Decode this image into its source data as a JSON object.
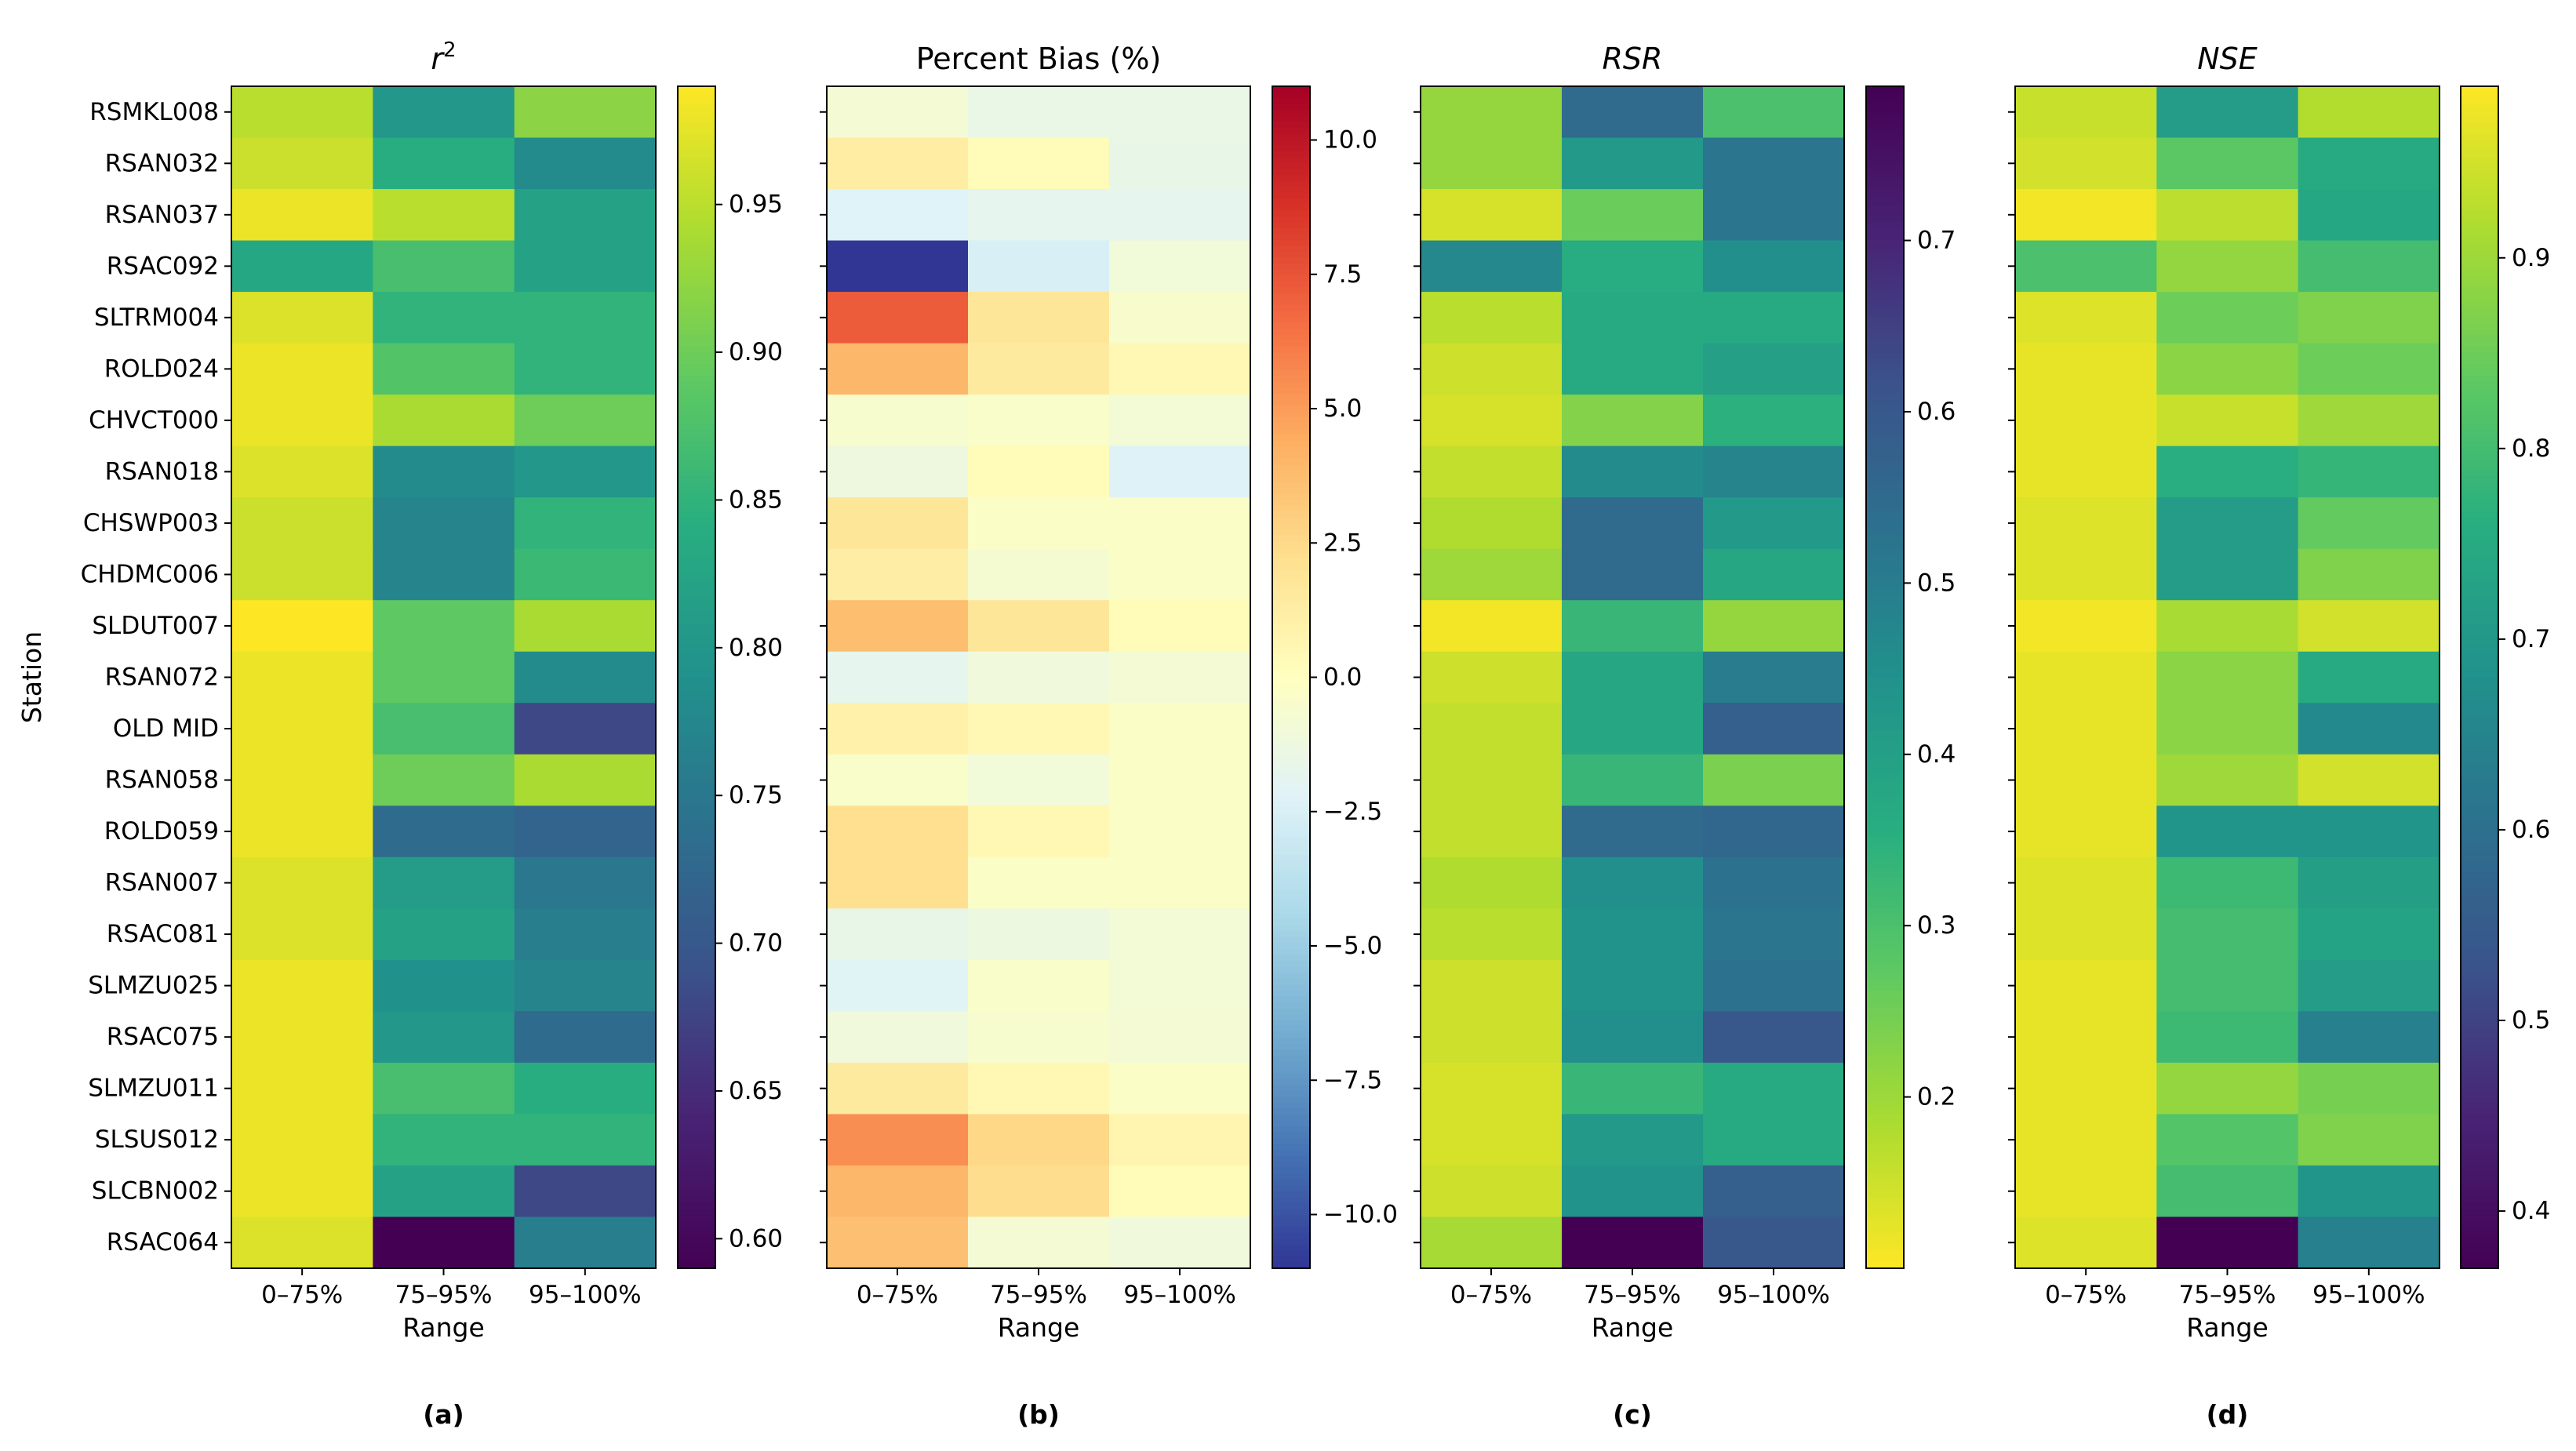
{
  "stations": [
    "RSMKL008",
    "RSAN032",
    "RSAN037",
    "RSAC092",
    "SLTRM004",
    "ROLD024",
    "CHVCT000",
    "RSAN018",
    "CHSWP003",
    "CHDMC006",
    "SLDUT007",
    "RSAN072",
    "OLD MID",
    "RSAN058",
    "ROLD059",
    "RSAN007",
    "RSAC081",
    "SLMZU025",
    "RSAC075",
    "SLMZU011",
    "SLSUS012",
    "SLCBN002",
    "RSAC064"
  ],
  "ranges": [
    "0–75%",
    "75–95%",
    "95–100%"
  ],
  "ylabel": "Station",
  "xlabel": "Range",
  "chart_data": [
    {
      "type": "heatmap",
      "panel": "(a)",
      "title": "r²",
      "title_main": "r",
      "title_sup": "2",
      "colormap": "viridis",
      "vmin": 0.59,
      "vmax": 0.99,
      "colorbar_ticks": [
        0.6,
        0.65,
        0.7,
        0.75,
        0.8,
        0.85,
        0.9,
        0.95
      ],
      "colorbar_tick_labels": [
        "0.60",
        "0.65",
        "0.70",
        "0.75",
        "0.80",
        "0.85",
        "0.90",
        "0.95"
      ],
      "values": [
        [
          0.95,
          0.8,
          0.92
        ],
        [
          0.96,
          0.84,
          0.78
        ],
        [
          0.98,
          0.95,
          0.82
        ],
        [
          0.83,
          0.87,
          0.82
        ],
        [
          0.97,
          0.85,
          0.85
        ],
        [
          0.98,
          0.88,
          0.85
        ],
        [
          0.98,
          0.94,
          0.9
        ],
        [
          0.97,
          0.78,
          0.8
        ],
        [
          0.96,
          0.77,
          0.85
        ],
        [
          0.96,
          0.77,
          0.86
        ],
        [
          0.99,
          0.89,
          0.94
        ],
        [
          0.98,
          0.89,
          0.78
        ],
        [
          0.98,
          0.87,
          0.68
        ],
        [
          0.98,
          0.9,
          0.94
        ],
        [
          0.98,
          0.73,
          0.72
        ],
        [
          0.97,
          0.81,
          0.75
        ],
        [
          0.97,
          0.82,
          0.76
        ],
        [
          0.98,
          0.79,
          0.77
        ],
        [
          0.98,
          0.8,
          0.73
        ],
        [
          0.98,
          0.87,
          0.84
        ],
        [
          0.98,
          0.85,
          0.85
        ],
        [
          0.98,
          0.82,
          0.68
        ],
        [
          0.97,
          0.59,
          0.76
        ]
      ]
    },
    {
      "type": "heatmap",
      "panel": "(b)",
      "title": "Percent Bias (%)",
      "colormap": "RdYlBu_r",
      "vmin": -11,
      "vmax": 11,
      "colorbar_ticks": [
        10.0,
        7.5,
        5.0,
        2.5,
        0.0,
        -2.5,
        -5.0,
        -7.5,
        -10.0
      ],
      "colorbar_tick_labels": [
        "10.0",
        "7.5",
        "5.0",
        "2.5",
        "0.0",
        "−2.5",
        "−5.0",
        "−7.5",
        "−10.0"
      ],
      "values": [
        [
          -0.8,
          -1.5,
          -1.5
        ],
        [
          1.3,
          0.3,
          -1.6
        ],
        [
          -2.2,
          -1.8,
          -1.8
        ],
        [
          -11.0,
          -2.5,
          -1.0
        ],
        [
          7.2,
          1.8,
          -0.5
        ],
        [
          4.0,
          1.5,
          0.5
        ],
        [
          -0.6,
          -0.4,
          -0.9
        ],
        [
          -1.2,
          0.3,
          -2.3
        ],
        [
          1.8,
          -0.3,
          -0.3
        ],
        [
          1.2,
          -0.7,
          -0.3
        ],
        [
          3.7,
          1.8,
          0.3
        ],
        [
          -1.8,
          -1.1,
          -0.8
        ],
        [
          1.0,
          0.5,
          -0.3
        ],
        [
          -0.4,
          -1.0,
          -0.3
        ],
        [
          2.2,
          0.5,
          -0.3
        ],
        [
          2.2,
          -0.3,
          -0.3
        ],
        [
          -1.6,
          -1.3,
          -0.9
        ],
        [
          -2.1,
          -0.4,
          -0.9
        ],
        [
          -1.1,
          -0.6,
          -0.8
        ],
        [
          1.5,
          0.5,
          -0.3
        ],
        [
          5.5,
          2.6,
          0.7
        ],
        [
          4.0,
          2.3,
          0.3
        ],
        [
          3.6,
          -0.8,
          -1.1
        ]
      ]
    },
    {
      "type": "heatmap",
      "panel": "(c)",
      "title": "RSR",
      "colormap": "viridis_r",
      "vmin": 0.1,
      "vmax": 0.79,
      "colorbar_ticks": [
        0.2,
        0.3,
        0.4,
        0.5,
        0.6,
        0.7
      ],
      "colorbar_tick_labels": [
        "0.2",
        "0.3",
        "0.4",
        "0.5",
        "0.6",
        "0.7"
      ],
      "values": [
        [
          0.21,
          0.55,
          0.3
        ],
        [
          0.21,
          0.42,
          0.52
        ],
        [
          0.14,
          0.26,
          0.52
        ],
        [
          0.47,
          0.36,
          0.45
        ],
        [
          0.17,
          0.37,
          0.37
        ],
        [
          0.15,
          0.37,
          0.4
        ],
        [
          0.14,
          0.23,
          0.35
        ],
        [
          0.16,
          0.46,
          0.48
        ],
        [
          0.18,
          0.55,
          0.42
        ],
        [
          0.2,
          0.55,
          0.38
        ],
        [
          0.11,
          0.33,
          0.21
        ],
        [
          0.15,
          0.38,
          0.5
        ],
        [
          0.16,
          0.38,
          0.58
        ],
        [
          0.16,
          0.33,
          0.24
        ],
        [
          0.16,
          0.55,
          0.56
        ],
        [
          0.18,
          0.45,
          0.53
        ],
        [
          0.17,
          0.44,
          0.52
        ],
        [
          0.15,
          0.44,
          0.53
        ],
        [
          0.15,
          0.45,
          0.6
        ],
        [
          0.14,
          0.33,
          0.37
        ],
        [
          0.14,
          0.42,
          0.37
        ],
        [
          0.15,
          0.44,
          0.58
        ],
        [
          0.19,
          0.79,
          0.6
        ]
      ]
    },
    {
      "type": "heatmap",
      "panel": "(d)",
      "title": "NSE",
      "colormap": "viridis",
      "vmin": 0.37,
      "vmax": 0.99,
      "colorbar_ticks": [
        0.4,
        0.5,
        0.6,
        0.7,
        0.8,
        0.9
      ],
      "colorbar_tick_labels": [
        "0.4",
        "0.5",
        "0.6",
        "0.7",
        "0.8",
        "0.9"
      ],
      "values": [
        [
          0.94,
          0.71,
          0.92
        ],
        [
          0.95,
          0.83,
          0.75
        ],
        [
          0.98,
          0.93,
          0.74
        ],
        [
          0.81,
          0.89,
          0.8
        ],
        [
          0.96,
          0.85,
          0.87
        ],
        [
          0.97,
          0.88,
          0.85
        ],
        [
          0.97,
          0.94,
          0.9
        ],
        [
          0.97,
          0.76,
          0.78
        ],
        [
          0.96,
          0.71,
          0.84
        ],
        [
          0.96,
          0.71,
          0.87
        ],
        [
          0.98,
          0.91,
          0.95
        ],
        [
          0.97,
          0.88,
          0.75
        ],
        [
          0.97,
          0.88,
          0.66
        ],
        [
          0.97,
          0.9,
          0.95
        ],
        [
          0.97,
          0.69,
          0.69
        ],
        [
          0.96,
          0.79,
          0.72
        ],
        [
          0.96,
          0.8,
          0.73
        ],
        [
          0.97,
          0.8,
          0.71
        ],
        [
          0.97,
          0.79,
          0.64
        ],
        [
          0.97,
          0.89,
          0.86
        ],
        [
          0.97,
          0.82,
          0.87
        ],
        [
          0.97,
          0.8,
          0.69
        ],
        [
          0.96,
          0.37,
          0.64
        ]
      ]
    }
  ]
}
